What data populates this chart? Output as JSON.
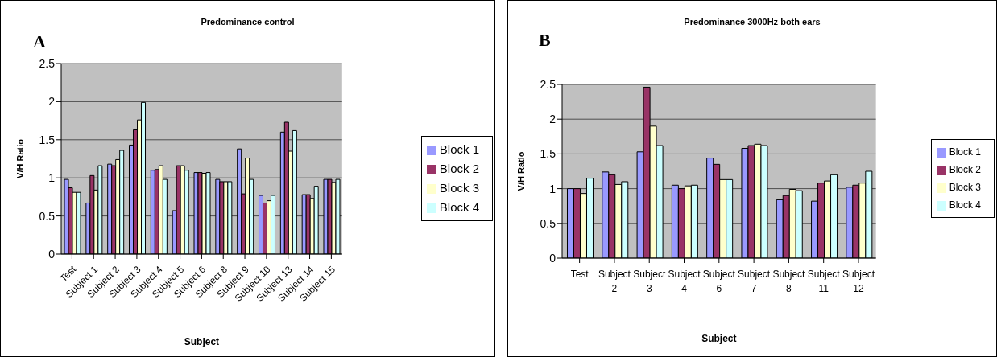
{
  "chart_data": [
    {
      "type": "bar",
      "title": "Predominance control",
      "annotations": [
        "A"
      ],
      "xlabel": "Subject",
      "ylabel": "V/H Ratio",
      "categories": [
        "Test",
        "Subject 1",
        "Subject 2",
        "Subject 3",
        "Subject 4",
        "Subject 5",
        "Subject 6",
        "Subject 8",
        "Subject 9",
        "Subject 10",
        "Subject 13",
        "Subject 14",
        "Subject 15"
      ],
      "series": [
        {
          "name": "Block 1",
          "color": "#9999ff",
          "values": [
            0.98,
            0.67,
            1.18,
            1.43,
            1.1,
            0.57,
            1.07,
            0.98,
            1.38,
            0.77,
            1.6,
            0.78,
            0.98
          ]
        },
        {
          "name": "Block 2",
          "color": "#993366",
          "values": [
            0.87,
            1.03,
            1.16,
            1.63,
            1.11,
            1.16,
            1.07,
            0.95,
            0.79,
            0.67,
            1.73,
            0.78,
            0.98
          ]
        },
        {
          "name": "Block 3",
          "color": "#ffffcc",
          "values": [
            0.81,
            0.84,
            1.24,
            1.76,
            1.16,
            1.16,
            1.06,
            0.95,
            1.26,
            0.7,
            1.35,
            0.73,
            0.94
          ]
        },
        {
          "name": "Block 4",
          "color": "#ccffff",
          "values": [
            0.81,
            1.16,
            1.36,
            1.99,
            0.98,
            1.1,
            1.07,
            0.95,
            0.98,
            0.77,
            1.62,
            0.89,
            0.98
          ]
        }
      ],
      "ylim": [
        0,
        2.5
      ],
      "yticks": [
        0,
        0.5,
        1,
        1.5,
        2,
        2.5
      ],
      "grid": "y",
      "legend": "right"
    },
    {
      "type": "bar",
      "title": "Predominance 3000Hz both ears",
      "annotations": [
        "B"
      ],
      "xlabel": "Subject",
      "ylabel": "V/H Ratio",
      "categories": [
        "Test",
        "Subject 2",
        "Subject 3",
        "Subject 4",
        "Subject 6",
        "Subject 7",
        "Subject 8",
        "Subject 11",
        "Subject 12"
      ],
      "series": [
        {
          "name": "Block 1",
          "color": "#9999ff",
          "values": [
            1.0,
            1.24,
            1.53,
            1.05,
            1.44,
            1.58,
            0.84,
            0.82,
            1.02
          ]
        },
        {
          "name": "Block 2",
          "color": "#993366",
          "values": [
            1.0,
            1.2,
            2.46,
            1.0,
            1.35,
            1.62,
            0.9,
            1.08,
            1.05
          ]
        },
        {
          "name": "Block 3",
          "color": "#ffffcc",
          "values": [
            0.93,
            1.06,
            1.9,
            1.04,
            1.13,
            1.64,
            0.99,
            1.11,
            1.08
          ]
        },
        {
          "name": "Block 4",
          "color": "#ccffff",
          "values": [
            1.15,
            1.1,
            1.62,
            1.05,
            1.13,
            1.62,
            0.97,
            1.2,
            1.25
          ]
        }
      ],
      "ylim": [
        0,
        2.5
      ],
      "yticks": [
        0,
        0.5,
        1,
        1.5,
        2,
        2.5
      ],
      "grid": "y",
      "legend": "right"
    }
  ]
}
